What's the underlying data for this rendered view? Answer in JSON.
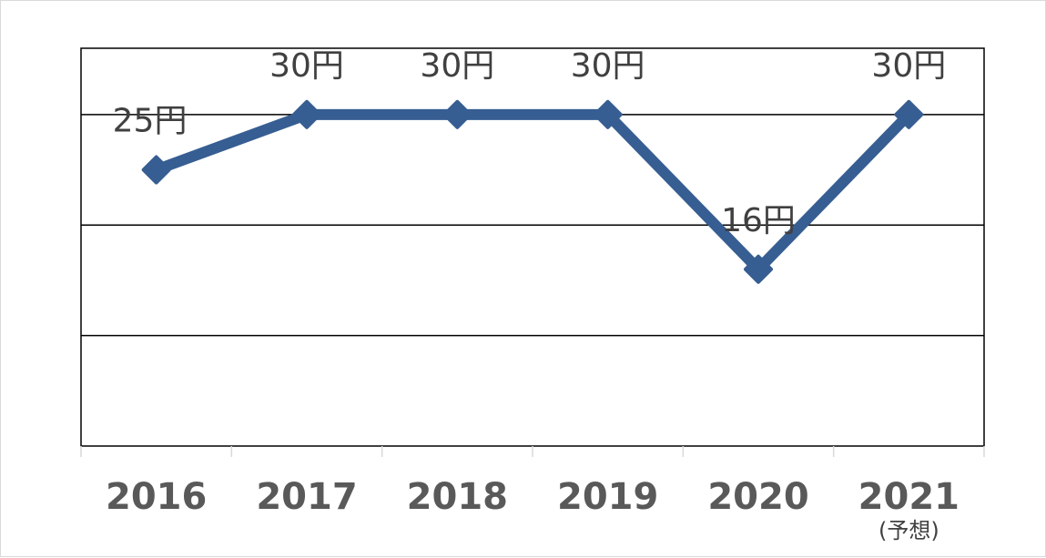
{
  "chart_data": {
    "type": "line",
    "categories": [
      "2016",
      "2017",
      "2018",
      "2019",
      "2020",
      "2021"
    ],
    "category_notes": [
      "",
      "",
      "",
      "",
      "",
      "(予想)"
    ],
    "series": [
      {
        "values": [
          25,
          30,
          30,
          30,
          16,
          30
        ],
        "color": "#375e92"
      }
    ],
    "data_labels": [
      "25円",
      "30円",
      "30円",
      "30円",
      "16円",
      "30円"
    ],
    "ylim": [
      0,
      36
    ],
    "gridlines": [
      10,
      20,
      30
    ],
    "grid": true,
    "title": "",
    "xlabel": "",
    "ylabel": ""
  }
}
